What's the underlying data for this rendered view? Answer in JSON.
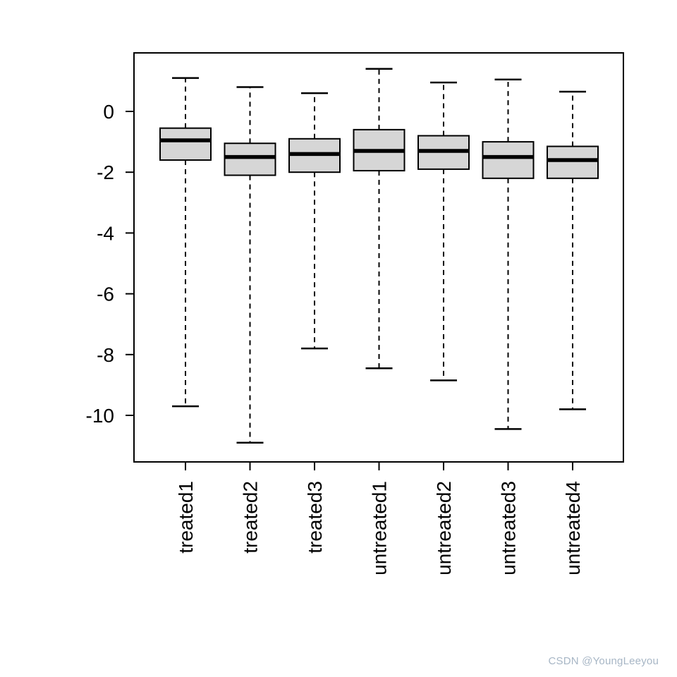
{
  "figure": {
    "watermark": "CSDN @YoungLeeyou"
  },
  "colors": {
    "background": "#ffffff",
    "box_fill": "#d6d6d6",
    "stroke": "#000000",
    "watermark": "#a7b6c5"
  },
  "chart_data": {
    "type": "boxplot",
    "grid": false,
    "legend": "none",
    "categories": [
      "treated1",
      "treated2",
      "treated3",
      "untreated1",
      "untreated2",
      "untreated3",
      "untreated4"
    ],
    "y_ticks": [
      0,
      -2,
      -4,
      -6,
      -8,
      -10
    ],
    "y_range": [
      -11.5,
      1.9
    ],
    "x_label_rotation": 90,
    "whisker_style": "dashed",
    "series": [
      {
        "name": "treated1",
        "whisker_low": -9.7,
        "q1": -1.6,
        "median": -0.95,
        "q3": -0.55,
        "whisker_high": 1.1
      },
      {
        "name": "treated2",
        "whisker_low": -10.9,
        "q1": -2.1,
        "median": -1.5,
        "q3": -1.05,
        "whisker_high": 0.8
      },
      {
        "name": "treated3",
        "whisker_low": -7.8,
        "q1": -2.0,
        "median": -1.4,
        "q3": -0.9,
        "whisker_high": 0.6
      },
      {
        "name": "untreated1",
        "whisker_low": -8.45,
        "q1": -1.95,
        "median": -1.3,
        "q3": -0.6,
        "whisker_high": 1.4
      },
      {
        "name": "untreated2",
        "whisker_low": -8.85,
        "q1": -1.9,
        "median": -1.3,
        "q3": -0.8,
        "whisker_high": 0.95
      },
      {
        "name": "untreated3",
        "whisker_low": -10.45,
        "q1": -2.2,
        "median": -1.5,
        "q3": -1.0,
        "whisker_high": 1.05
      },
      {
        "name": "untreated4",
        "whisker_low": -9.8,
        "q1": -2.2,
        "median": -1.6,
        "q3": -1.15,
        "whisker_high": 0.65
      }
    ]
  }
}
